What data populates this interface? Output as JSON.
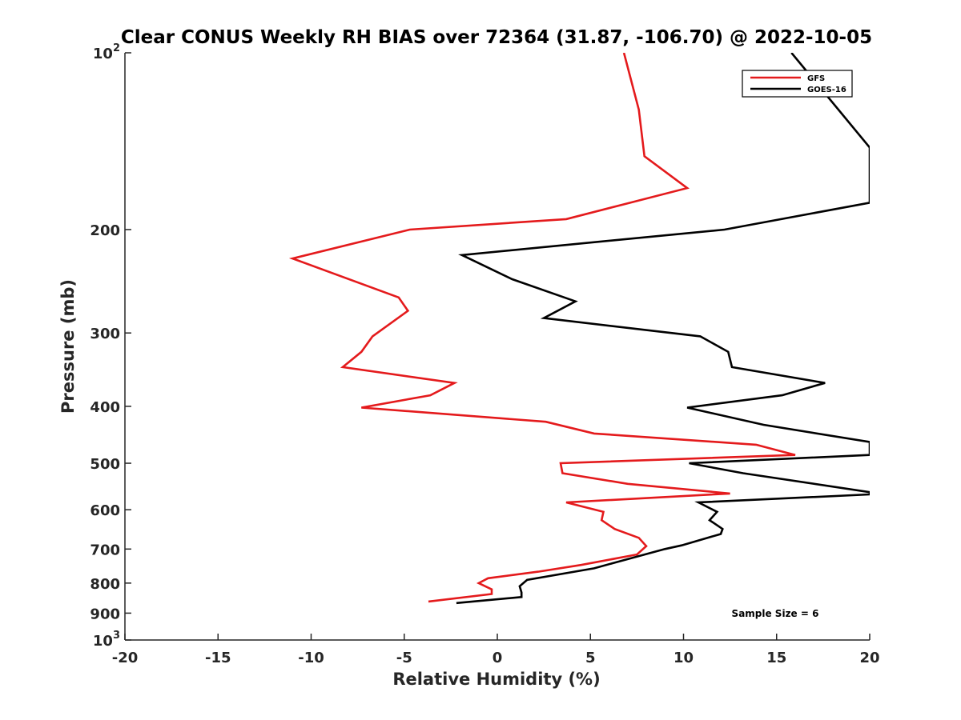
{
  "chart_data": {
    "type": "line",
    "title": "Clear CONUS Weekly RH BIAS over 72364 (31.87, -106.70) @ 2022-10-05",
    "xlabel": "Relative Humidity (%)",
    "ylabel": "Pressure (mb)",
    "xlim": [
      -20,
      20
    ],
    "ylim": [
      100,
      1000
    ],
    "y_scale": "log",
    "y_reversed": true,
    "grid": false,
    "legend_position": "top-right",
    "x_ticks": [
      -20,
      -15,
      -10,
      -5,
      0,
      5,
      10,
      15,
      20
    ],
    "x_tick_labels": [
      "-20",
      "-15",
      "-10",
      "-5",
      "0",
      "5",
      "10",
      "15",
      "20"
    ],
    "y_ticks": [
      100,
      200,
      300,
      400,
      500,
      600,
      700,
      800,
      900,
      1000
    ],
    "y_tick_labels": [
      {
        "base": "10",
        "exp": "2"
      },
      {
        "base": "200",
        "exp": ""
      },
      {
        "base": "300",
        "exp": ""
      },
      {
        "base": "400",
        "exp": ""
      },
      {
        "base": "500",
        "exp": ""
      },
      {
        "base": "600",
        "exp": ""
      },
      {
        "base": "700",
        "exp": ""
      },
      {
        "base": "800",
        "exp": ""
      },
      {
        "base": "900",
        "exp": ""
      },
      {
        "base": "10",
        "exp": "3"
      }
    ],
    "series": [
      {
        "name": "GFS",
        "color": "#e41a1c",
        "points": [
          [
            6.8,
            100
          ],
          [
            7.6,
            125
          ],
          [
            7.9,
            150
          ],
          [
            10.2,
            170
          ],
          [
            3.7,
            192
          ],
          [
            -4.7,
            200
          ],
          [
            -11.0,
            224
          ],
          [
            -5.3,
            261
          ],
          [
            -4.8,
            275
          ],
          [
            -6.7,
            304
          ],
          [
            -7.3,
            323
          ],
          [
            -8.3,
            343
          ],
          [
            -2.3,
            365
          ],
          [
            -3.6,
            383
          ],
          [
            -7.3,
            402
          ],
          [
            2.6,
            425
          ],
          [
            5.2,
            445
          ],
          [
            13.9,
            465
          ],
          [
            16.0,
            484
          ],
          [
            3.4,
            500
          ],
          [
            3.5,
            520
          ],
          [
            7.0,
            542
          ],
          [
            12.5,
            563
          ],
          [
            3.7,
            583
          ],
          [
            5.7,
            605
          ],
          [
            5.6,
            625
          ],
          [
            6.3,
            647
          ],
          [
            7.6,
            670
          ],
          [
            8.0,
            692
          ],
          [
            7.5,
            715
          ],
          [
            4.5,
            745
          ],
          [
            2.2,
            765
          ],
          [
            -0.5,
            785
          ],
          [
            -1.0,
            800
          ],
          [
            -0.3,
            820
          ],
          [
            -0.3,
            835
          ],
          [
            -3.7,
            860
          ]
        ]
      },
      {
        "name": "GOES-16",
        "color": "#000000",
        "points": [
          [
            15.8,
            100
          ],
          [
            20.0,
            145
          ],
          [
            20.0,
            180
          ],
          [
            12.2,
            200
          ],
          [
            -1.9,
            221
          ],
          [
            0.8,
            243
          ],
          [
            4.2,
            265
          ],
          [
            2.5,
            283
          ],
          [
            10.9,
            304
          ],
          [
            12.4,
            323
          ],
          [
            12.6,
            343
          ],
          [
            17.6,
            365
          ],
          [
            15.3,
            383
          ],
          [
            10.2,
            402
          ],
          [
            14.3,
            430
          ],
          [
            20.0,
            460
          ],
          [
            20.0,
            484
          ],
          [
            10.3,
            500
          ],
          [
            13.2,
            520
          ],
          [
            20.0,
            560
          ],
          [
            20.0,
            565
          ],
          [
            10.8,
            583
          ],
          [
            11.8,
            605
          ],
          [
            11.4,
            625
          ],
          [
            12.1,
            647
          ],
          [
            12.0,
            660
          ],
          [
            9.9,
            690
          ],
          [
            9.0,
            700
          ],
          [
            6.2,
            740
          ],
          [
            5.2,
            755
          ],
          [
            1.6,
            790
          ],
          [
            1.2,
            810
          ],
          [
            1.3,
            830
          ],
          [
            1.3,
            845
          ],
          [
            -2.2,
            865
          ]
        ]
      }
    ],
    "annotation": "Sample Size = 6"
  }
}
